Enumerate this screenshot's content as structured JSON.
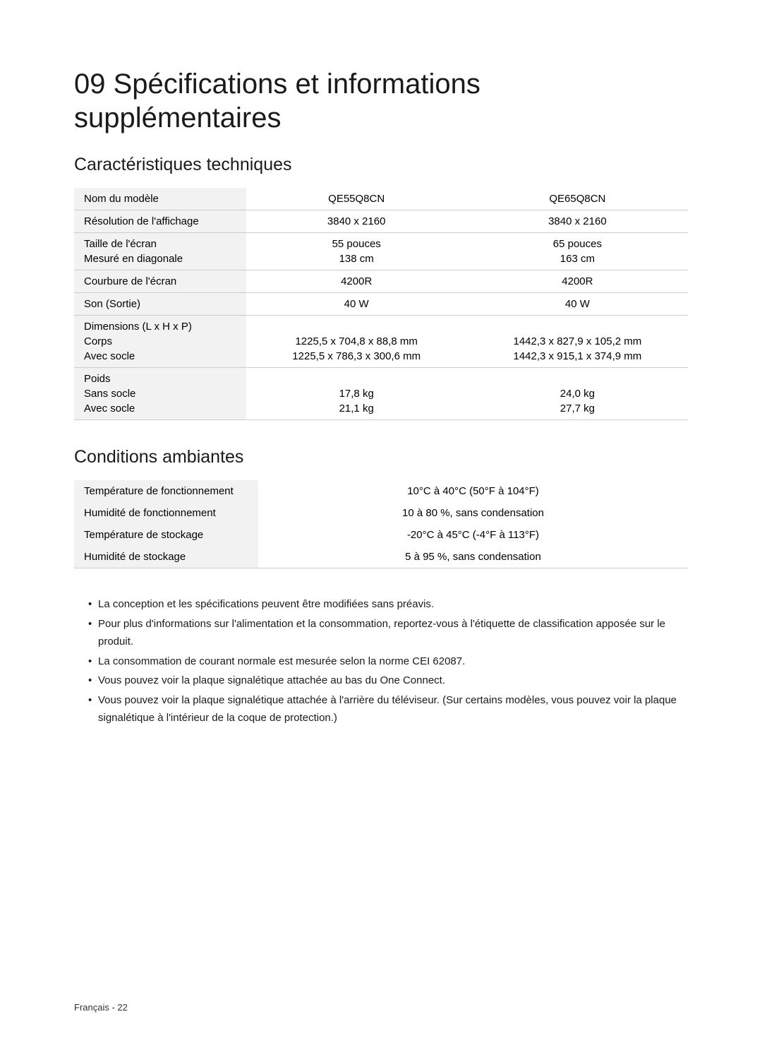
{
  "heading": "09  Spécifications et informations supplémentaires",
  "section1": {
    "title": "Caractéristiques techniques",
    "rows": {
      "model": {
        "label": "Nom du modèle",
        "c1": "QE55Q8CN",
        "c2": "QE65Q8CN"
      },
      "resolution": {
        "label": "Résolution de l'affichage",
        "c1": "3840 x 2160",
        "c2": "3840 x 2160"
      },
      "screen": {
        "label1": "Taille de l'écran",
        "label2": "Mesuré en diagonale",
        "r1c1": "55 pouces",
        "r1c2": "65 pouces",
        "r2c1": "138 cm",
        "r2c2": "163 cm"
      },
      "curve": {
        "label": "Courbure de l'écran",
        "c1": "4200R",
        "c2": "4200R"
      },
      "sound": {
        "label": "Son (Sortie)",
        "c1": "40 W",
        "c2": "40 W"
      },
      "dims": {
        "label1": "Dimensions (L x H x P)",
        "label2": "Corps",
        "label3": "Avec socle",
        "r2c1": "1225,5 x 704,8 x 88,8 mm",
        "r2c2": "1442,3 x 827,9 x 105,2 mm",
        "r3c1": "1225,5 x 786,3 x 300,6 mm",
        "r3c2": "1442,3 x 915,1 x 374,9 mm"
      },
      "weight": {
        "label1": "Poids",
        "label2": "Sans socle",
        "label3": "Avec socle",
        "r2c1": "17,8 kg",
        "r2c2": "24,0 kg",
        "r3c1": "21,1 kg",
        "r3c2": "27,7 kg"
      }
    }
  },
  "section2": {
    "title": "Conditions ambiantes",
    "rows": {
      "r1": {
        "label": "Température de fonctionnement",
        "v": "10°C à 40°C (50°F à 104°F)"
      },
      "r2": {
        "label": "Humidité de fonctionnement",
        "v": "10 à 80 %, sans condensation"
      },
      "r3": {
        "label": "Température de stockage",
        "v": "-20°C à 45°C (-4°F à 113°F)"
      },
      "r4": {
        "label": "Humidité de stockage",
        "v": "5 à 95 %, sans condensation"
      }
    }
  },
  "notes": {
    "n1": "La conception et les spécifications peuvent être modifiées sans préavis.",
    "n2": "Pour plus d'informations sur l'alimentation et la consommation, reportez-vous à l'étiquette de classification apposée sur le produit.",
    "n3": "La consommation de courant normale est mesurée selon la norme CEI 62087.",
    "n4": "Vous pouvez voir la plaque signalétique attachée au bas du One Connect.",
    "n5": "Vous pouvez voir la plaque signalétique attachée à l'arrière du téléviseur. (Sur certains modèles, vous pouvez voir la plaque signalétique à l'intérieur de la coque de protection.)"
  },
  "footer": "Français - 22"
}
